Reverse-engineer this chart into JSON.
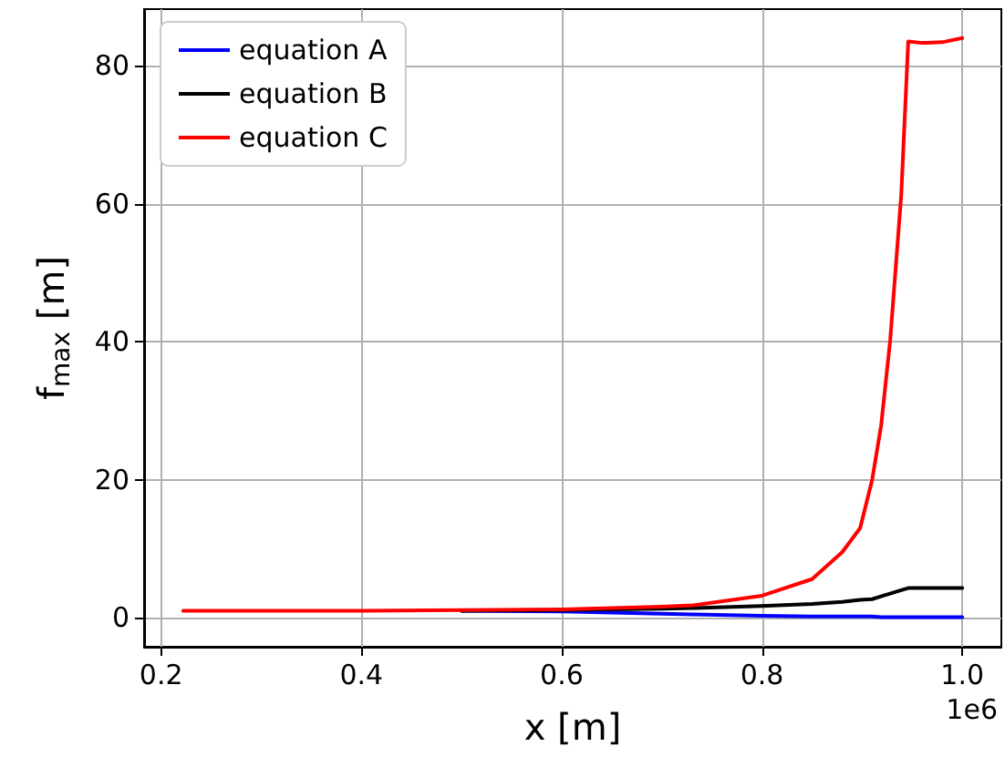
{
  "chart_data": {
    "type": "line",
    "xlabel": "x [m]",
    "ylabel": "f$_{max}$ [m]",
    "annotations": [
      "1e6"
    ],
    "xlim": [
      0.183,
      1.039
    ],
    "ylim": [
      -4.2,
      88.2
    ],
    "xticks": [
      0.2,
      0.4,
      0.6,
      0.8,
      {
        "value": 1.0,
        "label": "1.0"
      }
    ],
    "yticks": [
      0,
      20,
      40,
      60,
      80
    ],
    "grid": true,
    "legend": "top left",
    "marker": "none",
    "line_style": "solid",
    "x": [
      0.222,
      0.3,
      0.4,
      0.5,
      0.6,
      0.7,
      0.731,
      0.8,
      0.85,
      0.88,
      0.898,
      0.91,
      0.919,
      0.928,
      0.939,
      0.946,
      0.96,
      0.98,
      1.0
    ],
    "series": [
      {
        "name": "equation A",
        "color": "#0000ff",
        "values": [
          null,
          null,
          null,
          1.0,
          0.9,
          0.6,
          0.5,
          0.3,
          0.2,
          0.2,
          0.2,
          0.2,
          0.1,
          0.1,
          0.1,
          0.1,
          0.1,
          0.1,
          0.1
        ]
      },
      {
        "name": "equation B",
        "color": "#000000",
        "values": [
          null,
          null,
          null,
          1.0,
          1.1,
          1.3,
          1.4,
          1.7,
          2.0,
          2.3,
          2.6,
          2.7,
          3.1,
          3.5,
          4.0,
          4.3,
          4.3,
          4.3,
          4.3
        ]
      },
      {
        "name": "equation C",
        "color": "#ff0000",
        "values": [
          1.0,
          1.0,
          1.0,
          1.1,
          1.2,
          1.6,
          1.8,
          3.2,
          5.6,
          9.5,
          13.0,
          20.0,
          27.9,
          40.2,
          61.2,
          83.5,
          83.3,
          83.4,
          84.0
        ]
      }
    ]
  }
}
